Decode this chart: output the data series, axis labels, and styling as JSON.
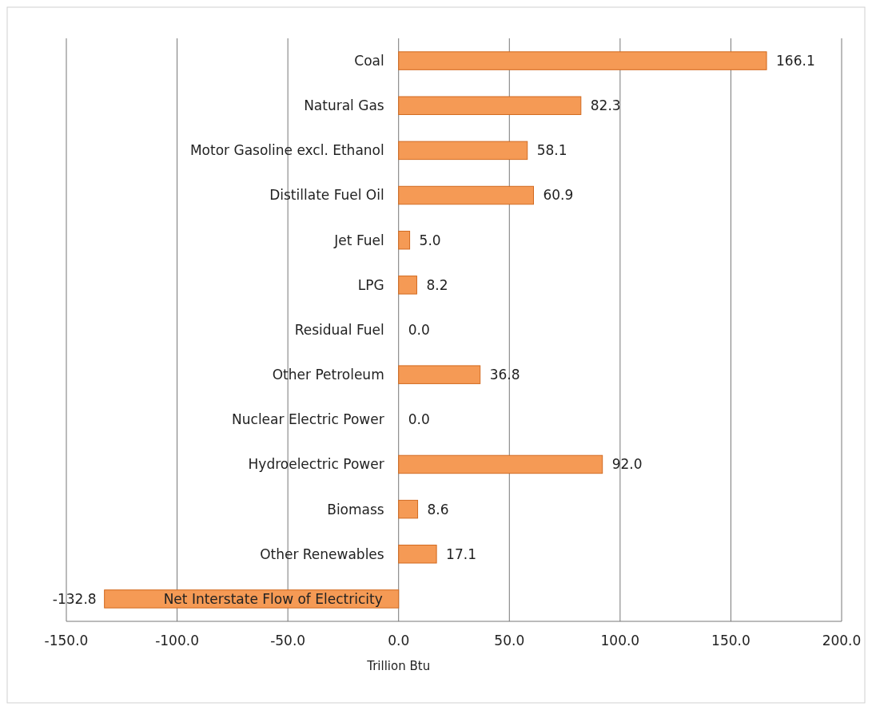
{
  "chart_data": {
    "type": "bar",
    "orientation": "horizontal",
    "categories": [
      "Coal",
      "Natural Gas",
      "Motor Gasoline excl. Ethanol",
      "Distillate Fuel Oil",
      "Jet Fuel",
      "LPG",
      "Residual Fuel",
      "Other Petroleum",
      "Nuclear Electric Power",
      "Hydroelectric Power",
      "Biomass",
      "Other Renewables",
      "Net Interstate Flow of Electricity"
    ],
    "values": [
      166.1,
      82.3,
      58.1,
      60.9,
      5.0,
      8.2,
      0.0,
      36.8,
      0.0,
      92.0,
      8.6,
      17.1,
      -132.8
    ],
    "value_labels": [
      "166.1",
      "82.3",
      "58.1",
      "60.9",
      "5.0",
      "8.2",
      "0.0",
      "36.8",
      "0.0",
      "92.0",
      "8.6",
      "17.1",
      "-132.8"
    ],
    "color": "#f59a55",
    "xlabel": "Trillion Btu",
    "xlim": [
      -150,
      200
    ],
    "xticks": [
      {
        "value": -150,
        "label": "-150.0"
      },
      {
        "value": -100,
        "label": "-100.0"
      },
      {
        "value": -50,
        "label": "-50.0"
      },
      {
        "value": 0,
        "label": "0.0"
      },
      {
        "value": 50,
        "label": "50.0"
      },
      {
        "value": 100,
        "label": "100.0"
      },
      {
        "value": 150,
        "label": "150.0"
      },
      {
        "value": 200,
        "label": "200.0"
      }
    ],
    "grid": "x"
  }
}
